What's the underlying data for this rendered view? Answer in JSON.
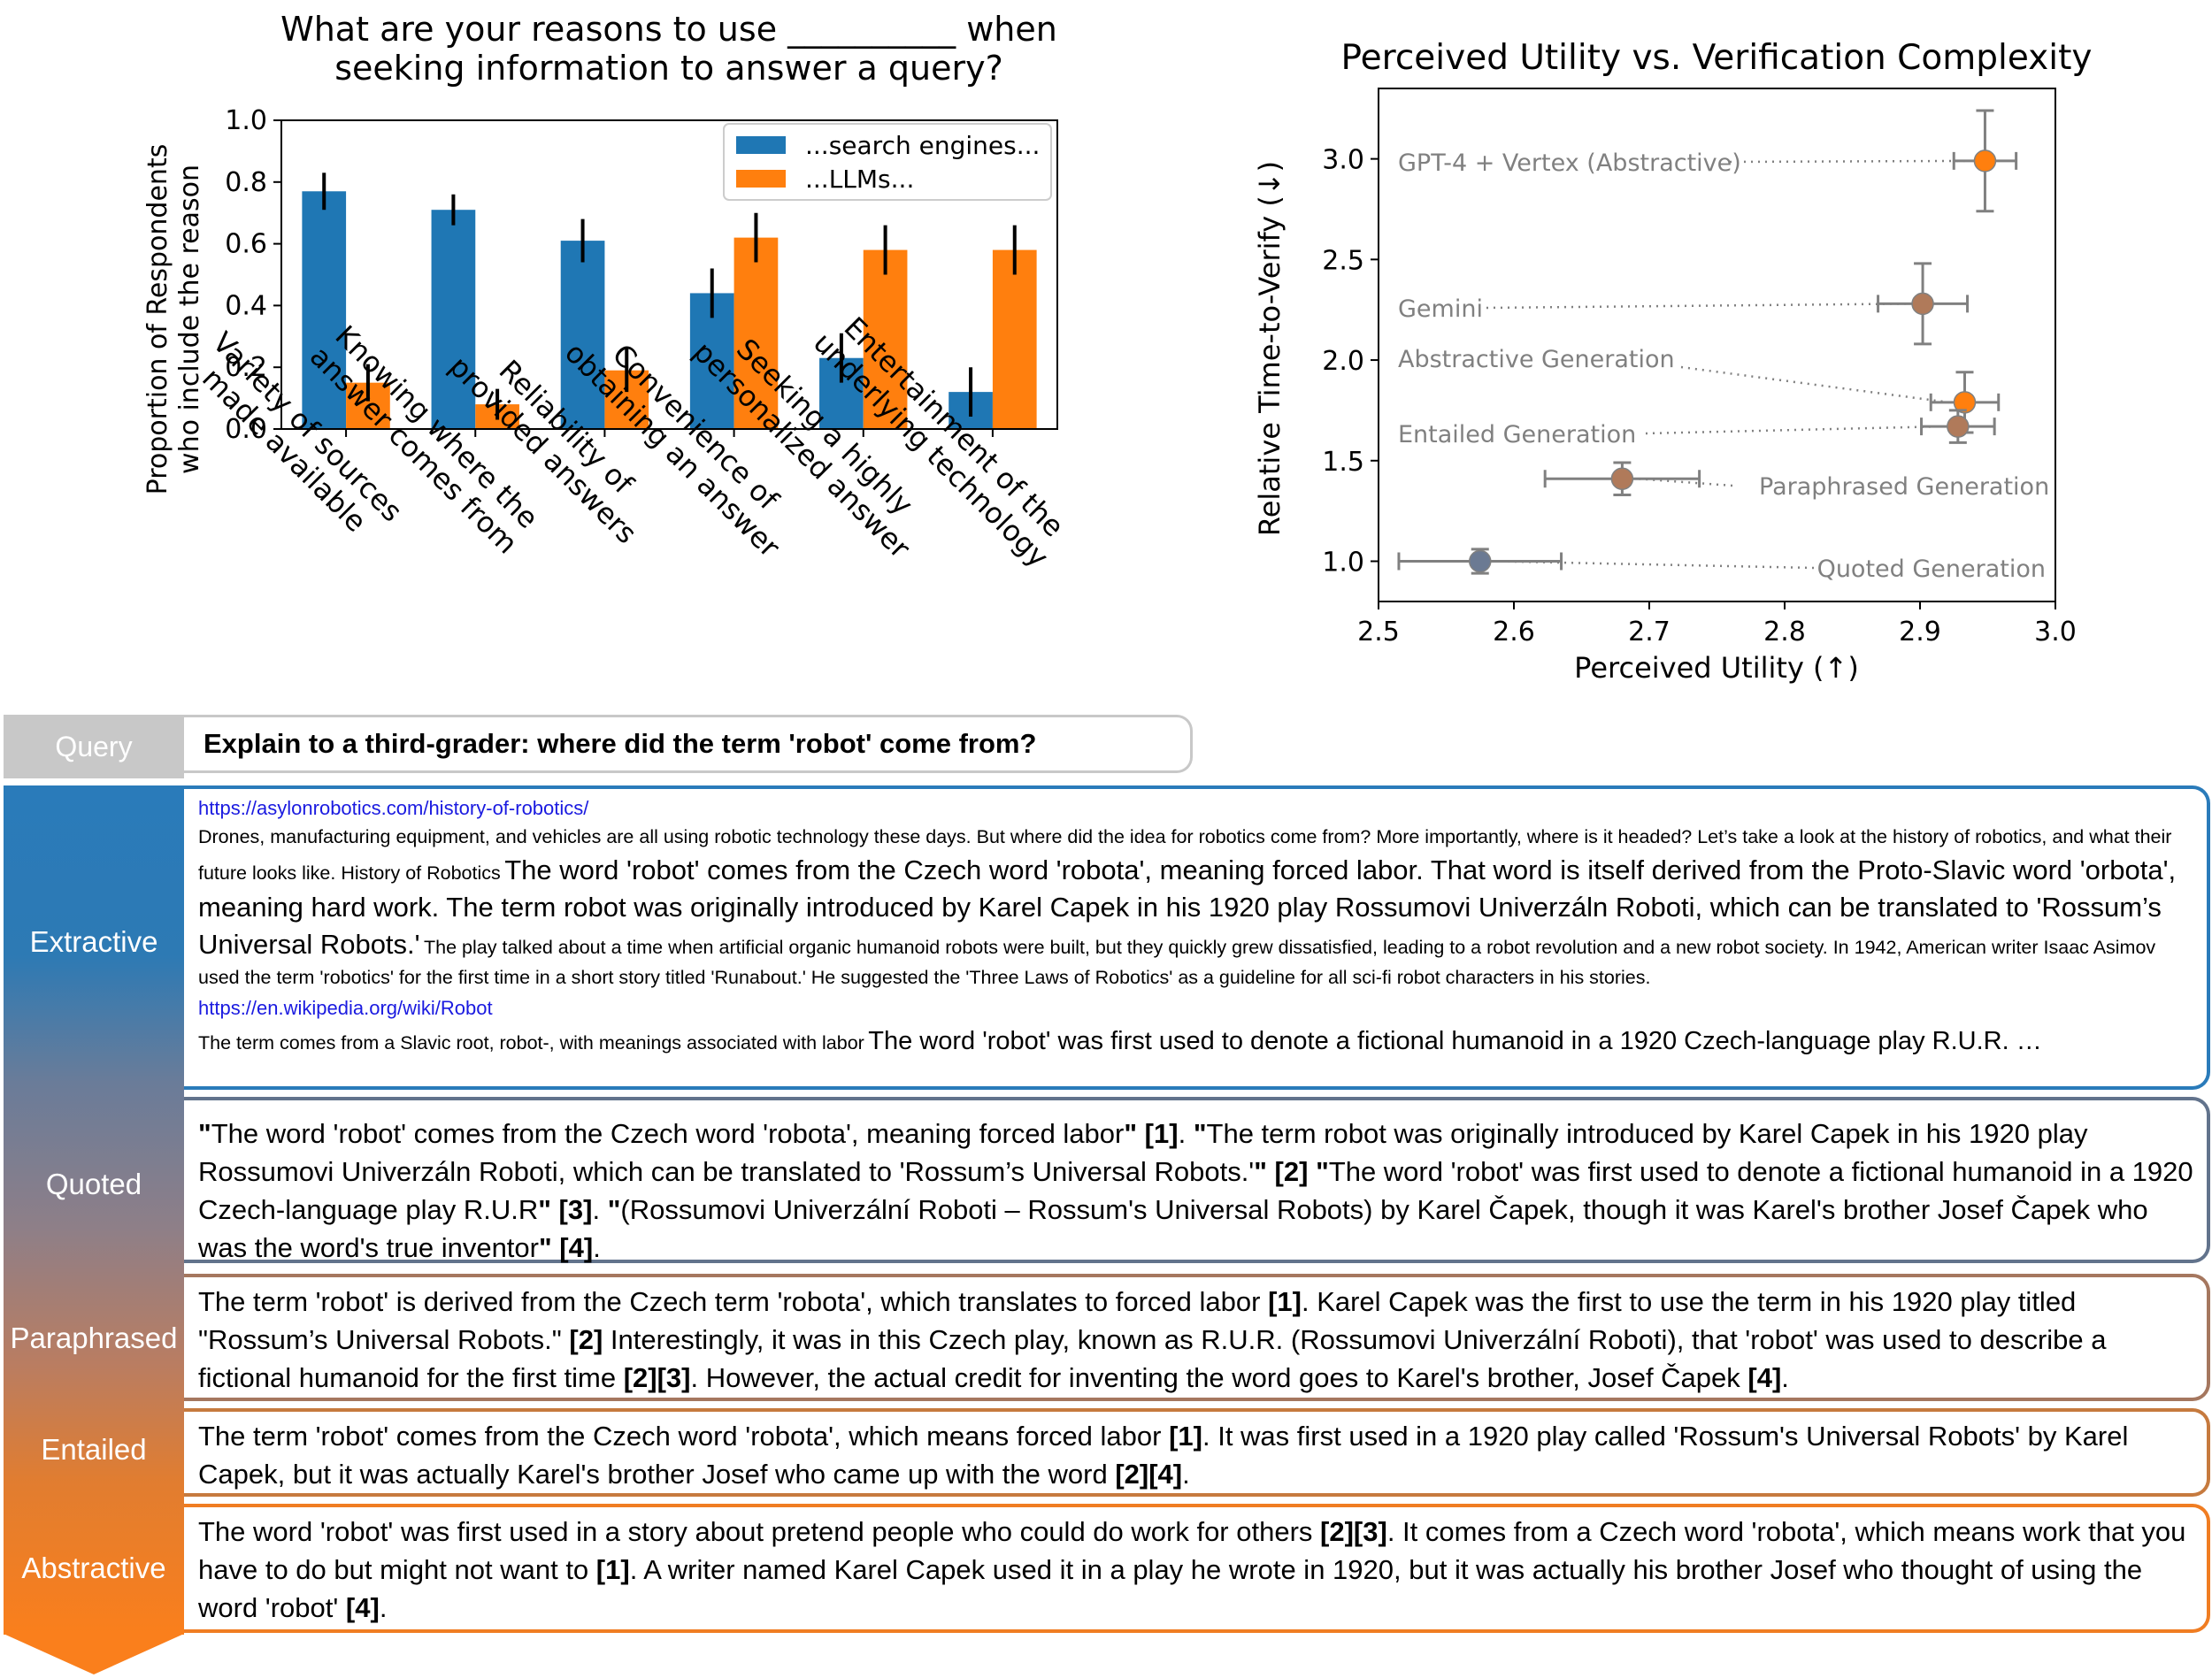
{
  "chart_data": [
    {
      "type": "bar",
      "title": "What are your reasons to use __________ when seeking information to answer a query?",
      "title_lines": [
        "What are your reasons to use __________ when",
        "seeking information to answer a query?"
      ],
      "ylabel": "Proportion of Respondents who include the reason",
      "ylabel_lines": [
        "Proportion of Respondents",
        "who include the reason"
      ],
      "ylim": [
        0,
        1.0
      ],
      "yticks": [
        "0.0",
        "0.2",
        "0.4",
        "0.6",
        "0.8",
        "1.0"
      ],
      "categories": [
        "Variety of sources made available",
        "Knowing where the answer comes from",
        "Reliability of provided answers",
        "Convenience of obtaining an answer",
        "Seeking a highly personalized answer",
        "Entertainment of the underlying technology"
      ],
      "category_lines": [
        [
          "Variety of sources",
          "made available"
        ],
        [
          "Knowing where the",
          "answer comes from"
        ],
        [
          "Reliability of",
          "provided answers"
        ],
        [
          "Convenience of",
          "obtaining an answer"
        ],
        [
          "Seeking a highly",
          "personalized answer"
        ],
        [
          "Entertainment of the",
          "underlying technology"
        ]
      ],
      "series": [
        {
          "name": "...search engines...",
          "color": "#1f77b4",
          "values": [
            0.77,
            0.71,
            0.61,
            0.44,
            0.23,
            0.12
          ],
          "errors": [
            0.06,
            0.05,
            0.07,
            0.08,
            0.08,
            0.08
          ]
        },
        {
          "name": "...LLMs...",
          "color": "#ff7f0e",
          "values": [
            0.15,
            0.08,
            0.19,
            0.62,
            0.58,
            0.58
          ],
          "errors": [
            0.06,
            0.05,
            0.07,
            0.08,
            0.08,
            0.08
          ]
        }
      ],
      "legend": "top-right",
      "grid": false
    },
    {
      "type": "scatter",
      "title": "Perceived Utility vs. Verification Complexity",
      "xlabel": "Perceived Utility (↑)",
      "ylabel": "Relative Time-to-Verify (↓)",
      "xlim": [
        2.5,
        3.0
      ],
      "ylim": [
        0.8,
        3.35
      ],
      "xticks": [
        "2.5",
        "2.6",
        "2.7",
        "2.8",
        "2.9",
        "3.0"
      ],
      "yticks": [
        "1.0",
        "1.5",
        "2.0",
        "2.5",
        "3.0"
      ],
      "points": [
        {
          "name": "GPT-4 + Vertex (Abstractive)",
          "x": 2.948,
          "y": 2.99,
          "xerr": 0.023,
          "yerr": 0.25,
          "color": "#ff7f0e"
        },
        {
          "name": "Gemini",
          "x": 2.902,
          "y": 2.28,
          "xerr": 0.033,
          "yerr": 0.2,
          "color": "#b07a5a"
        },
        {
          "name": "Abstractive Generation",
          "x": 2.933,
          "y": 1.79,
          "xerr": 0.025,
          "yerr": 0.15,
          "color": "#ff7f0e"
        },
        {
          "name": "Entailed Generation",
          "x": 2.928,
          "y": 1.67,
          "xerr": 0.027,
          "yerr": 0.08,
          "color": "#b07a5a"
        },
        {
          "name": "Paraphrased Generation",
          "x": 2.68,
          "y": 1.41,
          "xerr": 0.057,
          "yerr": 0.08,
          "color": "#b07a5a"
        },
        {
          "name": "Quoted Generation",
          "x": 2.575,
          "y": 1.0,
          "xerr": 0.06,
          "yerr": 0.06,
          "color": "#6b7a93"
        }
      ],
      "grid": false
    }
  ],
  "query": {
    "label": "Query",
    "text": "Explain to a third-grader: where did the term 'robot' come from?"
  },
  "labels": {
    "extractive": "Extractive",
    "quoted": "Quoted",
    "paraphrased": "Paraphrased",
    "entailed": "Entailed",
    "abstractive": "Abstractive"
  },
  "extractive": {
    "url1": "https://asylonrobotics.com/history-of-robotics/",
    "context1": "Drones, manufacturing equipment, and vehicles are all using robotic technology these days. But where did the idea for robotics come from? More importantly, where is it headed? Let’s take a look at the history of robotics, and what their future looks like. History of Robotics",
    "quote1": "The word 'robot' comes from the Czech word 'robota', meaning forced labor. That word is itself derived from the Proto-Slavic word 'orbota', meaning hard work. The term robot was originally introduced by Karel Capek in his 1920 play Rossumovi Univerzáln Roboti, which can be translated to 'Rossum’s Universal Robots.'",
    "context2": "The play talked about a time when artificial organic humanoid robots were built, but they quickly grew dissatisfied, leading to a robot revolution and a new robot society. In 1942, American writer Isaac Asimov used the term 'robotics' for the first time in a short story titled 'Runabout.' He suggested the 'Three Laws of Robotics' as a guideline for all sci-fi robot characters in his stories.",
    "url2": "https://en.wikipedia.org/wiki/Robot",
    "context3": "The term comes from a Slavic root, robot-, with meanings associated with labor",
    "quote2": "The word 'robot' was first used to denote a fictional humanoid in a 1920 Czech-language play R.U.R. …"
  },
  "quoted": {
    "open1": "\"",
    "t1": "The word 'robot' comes from the Czech word 'robota', meaning forced labor",
    "close1": "\" [1]",
    "sep1": ". ",
    "open2": "\"",
    "t2": "The term robot was originally introduced by Karel Capek in his 1920 play Rossumovi Univerzáln Roboti, which can be translated to 'Rossum’s Universal Robots.'",
    "close2": "\" [2]",
    "sep2": " ",
    "open3": "\"",
    "t3": "The word 'robot' was first used to denote a fictional humanoid in a 1920 Czech-language play R.U.R",
    "close3": "\" [3]",
    "sep3": ". ",
    "open4": "\"",
    "t4": "(Rossumovi Univerzální Roboti – Rossum's Universal Robots) by Karel Čapek, though it was Karel's brother Josef Čapek who was the word's true inventor",
    "close4": "\" [4]",
    "end": "."
  },
  "paraphrased": {
    "t1": "The term 'robot' is derived from the Czech term 'robota', which translates to forced labor ",
    "c1": "[1]",
    "t2": ". Karel Capek was the first to use the term in his 1920 play titled \"Rossum’s Universal Robots.\" ",
    "c2": "[2]",
    "t3": " Interestingly, it was in this Czech play, known as R.U.R. (Rossumovi Univerzální Roboti), that 'robot' was used to describe a fictional humanoid for the first time ",
    "c3": "[2][3]",
    "t4": ". However, the actual credit for inventing the word goes to Karel's brother, Josef Čapek ",
    "c4": "[4]",
    "t5": "."
  },
  "entailed": {
    "t1": "The term 'robot' comes from the Czech word 'robota', which means forced labor ",
    "c1": "[1]",
    "t2": ". It was first used in a 1920 play called 'Rossum's Universal Robots' by Karel Capek, but it was actually Karel's brother Josef who came up with the word ",
    "c2": "[2][4]",
    "t3": "."
  },
  "abstractive": {
    "t1": "The word 'robot' was first used in a story about pretend people who could do work for others ",
    "c1": "[2][3]",
    "t2": ". It comes from a Czech word 'robota', which means work that you have to do but might not want to ",
    "c2": "[1]",
    "t3": ". A writer named Karel Capek used it in a play he wrote in 1920, but it was actually his brother Josef who thought of using the word 'robot' ",
    "c3": "[4]",
    "t4": "."
  }
}
